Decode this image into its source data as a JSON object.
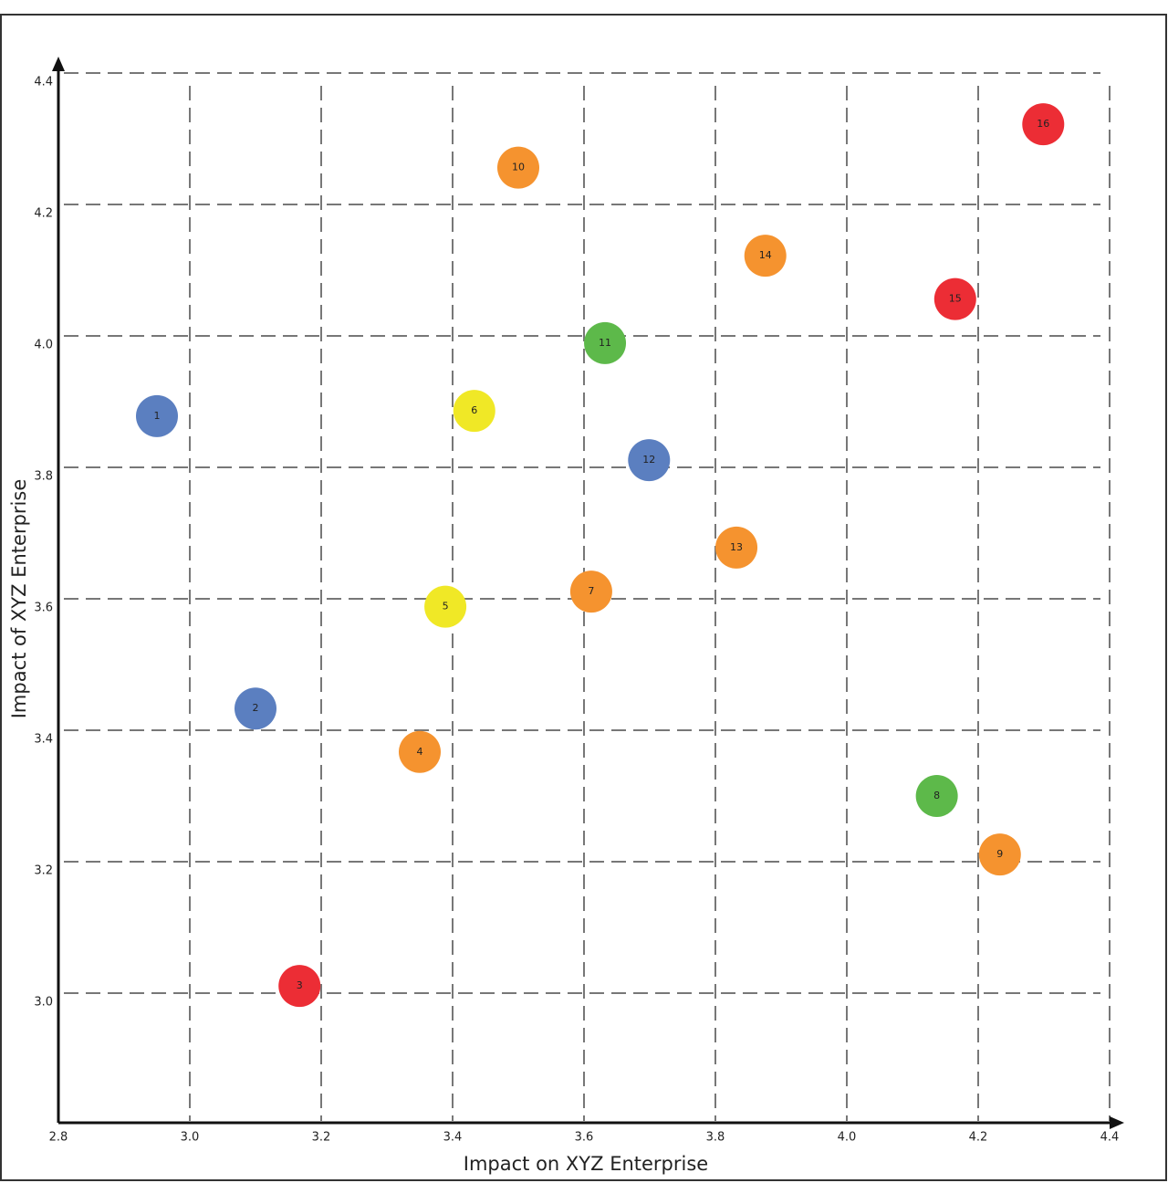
{
  "chart_data": {
    "type": "scatter",
    "x_label": "Impact on XYZ Enterprise",
    "y_label": "Impact of XYZ Enterprise",
    "xlim": [
      2.8,
      4.4
    ],
    "ylim": [
      2.8,
      4.4
    ],
    "xticks": [
      2.8,
      {
        "value": 3.0,
        "label": "3.0"
      },
      3.2,
      3.4,
      3.6,
      3.8,
      {
        "value": 4.0,
        "label": "4.0"
      },
      4.2,
      4.4
    ],
    "yticks": [
      {
        "value": 3.0,
        "label": "3.0"
      },
      3.2,
      3.4,
      3.6,
      3.8,
      {
        "value": 4.0,
        "label": "4.0"
      },
      4.2,
      4.4
    ],
    "grid": true,
    "labels": [
      "1",
      "2",
      "3",
      "4",
      "5",
      "6",
      "7",
      "8",
      "9",
      "10",
      "11",
      "12",
      "13",
      "14",
      "15",
      "16"
    ],
    "x": [
      2.95,
      3.1,
      3.167,
      3.35,
      3.389,
      3.433,
      3.611,
      4.137,
      4.233,
      3.5,
      3.632,
      3.699,
      3.832,
      3.876,
      4.165,
      4.299
    ],
    "values": [
      3.878,
      3.433,
      3.011,
      3.367,
      3.588,
      3.886,
      3.611,
      3.3,
      3.211,
      4.256,
      3.989,
      3.811,
      3.678,
      4.122,
      4.056,
      4.322
    ],
    "colors": [
      "#5b7fc0",
      "#5b7fc0",
      "#ec2d35",
      "#f5932f",
      "#f0e826",
      "#f0e826",
      "#f5932f",
      "#5db94a",
      "#f5932f",
      "#f5932f",
      "#5db94a",
      "#5b7fc0",
      "#f5932f",
      "#f5932f",
      "#ec2d35",
      "#ec2d35"
    ]
  }
}
